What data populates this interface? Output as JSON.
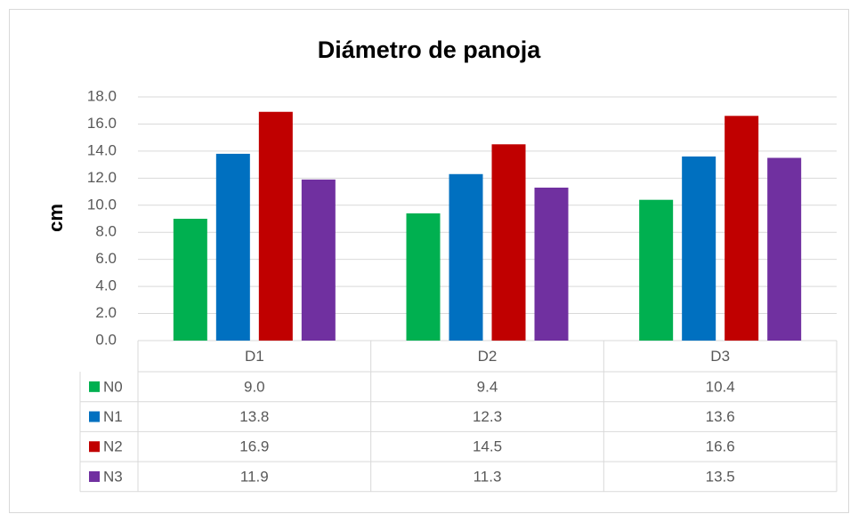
{
  "chart_data": {
    "type": "bar",
    "title": "Diámetro de panoja",
    "y_label": "cm",
    "categories": [
      "D1",
      "D2",
      "D3"
    ],
    "series": [
      {
        "name": "N0",
        "color": "#00b050",
        "values": [
          9.0,
          9.4,
          10.4
        ],
        "value_labels": [
          "9.0",
          "9.4",
          "10.4"
        ]
      },
      {
        "name": "N1",
        "color": "#0070c0",
        "values": [
          13.8,
          12.3,
          13.6
        ],
        "value_labels": [
          "13.8",
          "12.3",
          "13.6"
        ]
      },
      {
        "name": "N2",
        "color": "#c00000",
        "values": [
          16.9,
          14.5,
          16.6
        ],
        "value_labels": [
          "16.9",
          "14.5",
          "16.6"
        ]
      },
      {
        "name": "N3",
        "color": "#7030a0",
        "values": [
          11.9,
          11.3,
          13.5
        ],
        "value_labels": [
          "11.9",
          "11.3",
          "13.5"
        ]
      }
    ],
    "ylim": [
      0,
      18
    ],
    "yticks": [
      {
        "value": 0,
        "label": "0.0"
      },
      {
        "value": 2,
        "label": "2.0"
      },
      {
        "value": 4,
        "label": "4.0"
      },
      {
        "value": 6,
        "label": "6.0"
      },
      {
        "value": 8,
        "label": "8.0"
      },
      {
        "value": 10,
        "label": "10.0"
      },
      {
        "value": 12,
        "label": "12.0"
      },
      {
        "value": 14,
        "label": "14.0"
      },
      {
        "value": 16,
        "label": "16.0"
      },
      {
        "value": 18,
        "label": "18.0"
      }
    ],
    "grid": true
  }
}
